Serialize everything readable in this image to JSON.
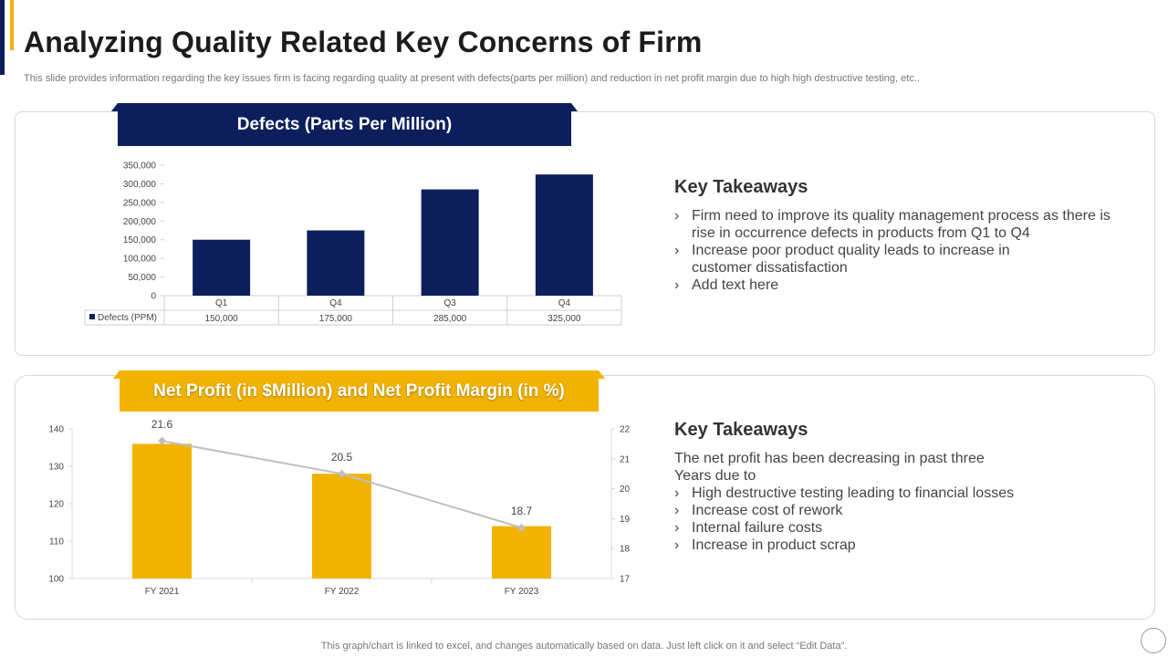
{
  "header": {
    "title": "Analyzing Quality Related Key Concerns of Firm",
    "subtitle": "This slide provides information regarding the key issues firm is facing regarding quality at present with defects(parts per million) and reduction in net profit margin due to high high destructive testing, etc.."
  },
  "colors": {
    "navy": "#0c1f5c",
    "gold": "#f2b300",
    "line": "#bfbfbf"
  },
  "top_panel": {
    "banner": "Defects (Parts Per Million)",
    "takeaways": {
      "heading": "Key Takeaways",
      "bullets": [
        "Firm need to improve its quality management process as there is rise in occurrence defects in products from Q1 to Q4",
        "Increase poor product quality leads to increase in customer dissatisfaction",
        "Add text here"
      ]
    }
  },
  "bottom_panel": {
    "banner": "Net Profit (in $Million) and Net Profit Margin (in %)",
    "takeaways": {
      "heading": "Key Takeaways",
      "intro": "The net profit has been decreasing in past three Years due to",
      "bullets": [
        "High destructive testing leading to financial losses",
        "Increase  cost of rework",
        "Internal  failure costs",
        "Increase  in product scrap"
      ]
    }
  },
  "chart_data": [
    {
      "type": "bar",
      "title": "Defects (Parts Per Million)",
      "categories": [
        "Q1",
        "Q4",
        "Q3",
        "Q4"
      ],
      "series": [
        {
          "name": "Defects (PPM)",
          "values": [
            150000,
            175000,
            285000,
            325000
          ]
        }
      ],
      "table_values": [
        "150,000",
        "175,000",
        "285,000",
        "325,000"
      ],
      "ylim": [
        0,
        350000
      ],
      "yticks": [
        "0",
        "50,000",
        "100,000",
        "150,000",
        "200,000",
        "250,000",
        "300,000",
        "350,000"
      ],
      "legend": "data table"
    },
    {
      "type": "bar",
      "title": "Net Profit (in $Million) and Net Profit Margin (in %)",
      "categories": [
        "FY 2021",
        "FY 2022",
        "FY 2023"
      ],
      "series": [
        {
          "name": "Net Profit (in $Million)",
          "type": "bar",
          "values": [
            136,
            128,
            114
          ],
          "axis": "left"
        },
        {
          "name": "Net Profit Margin (in %)",
          "type": "line",
          "values": [
            21.6,
            20.5,
            18.7
          ],
          "labels": [
            "21.6",
            "20.5",
            "18.7"
          ],
          "axis": "right"
        }
      ],
      "ylim_left": [
        100,
        140
      ],
      "yticks_left": [
        "100",
        "110",
        "120",
        "130",
        "140"
      ],
      "ylim_right": [
        17,
        22
      ],
      "yticks_right": [
        "17",
        "18",
        "19",
        "20",
        "21",
        "22"
      ]
    }
  ],
  "footer": "This graph/chart is linked to excel,  and changes automatically based on data. Just left click on it and select “Edit Data”."
}
